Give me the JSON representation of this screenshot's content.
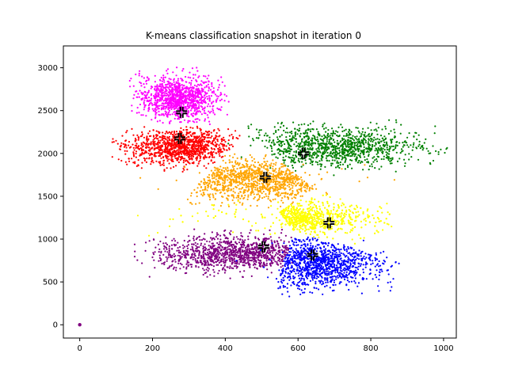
{
  "chart_data": {
    "type": "scatter",
    "title": "K-means classification snapshot in iteration 0",
    "xlabel": "",
    "ylabel": "",
    "xlim": [
      -45,
      1035
    ],
    "ylim": [
      -155,
      3255
    ],
    "xticks": [
      0,
      200,
      400,
      600,
      800,
      1000
    ],
    "yticks": [
      0,
      500,
      1000,
      1500,
      2000,
      2500,
      3000
    ],
    "grid": false,
    "legend": "none",
    "clusters": [
      {
        "color": "#ff00ff",
        "centroid": [
          280,
          2480
        ],
        "x_range": [
          150,
          390
        ],
        "y_range": [
          2330,
          2950
        ]
      },
      {
        "color": "#ff0000",
        "centroid": [
          275,
          2175
        ],
        "x_range": [
          110,
          440
        ],
        "y_range": [
          1830,
          2330
        ]
      },
      {
        "color": "#008000",
        "centroid": [
          615,
          2000
        ],
        "x_range": [
          400,
          980
        ],
        "y_range": [
          1800,
          2350
        ]
      },
      {
        "color": "#ffa500",
        "centroid": [
          510,
          1720
        ],
        "x_range": [
          150,
          850
        ],
        "y_range": [
          1420,
          1980
        ]
      },
      {
        "color": "#ffff00",
        "centroid": [
          685,
          1190
        ],
        "x_range": [
          150,
          830
        ],
        "y_range": [
          1000,
          1480
        ]
      },
      {
        "color": "#800080",
        "centroid": [
          505,
          910
        ],
        "x_range": [
          180,
          690
        ],
        "y_range": [
          600,
          1070
        ]
      },
      {
        "color": "#0000ff",
        "centroid": [
          640,
          815
        ],
        "x_range": [
          420,
          860
        ],
        "y_range": [
          380,
          1080
        ]
      }
    ],
    "outlier": {
      "color": "#800080",
      "point": [
        0,
        0
      ]
    }
  }
}
